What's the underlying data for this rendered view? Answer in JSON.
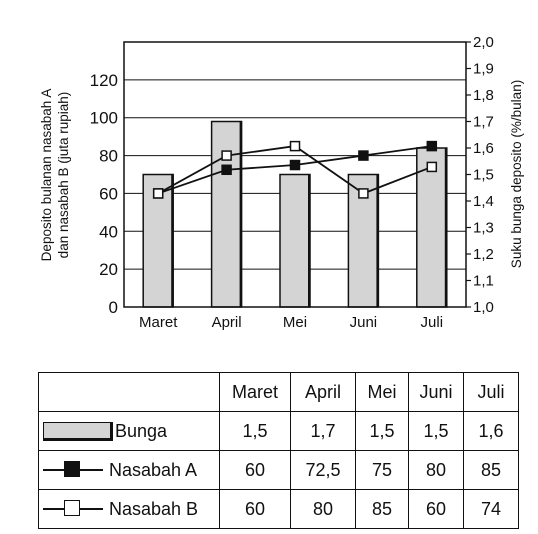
{
  "chart_data": {
    "type": "bar+line",
    "categories": [
      "Maret",
      "April",
      "Mei",
      "Juni",
      "Juli"
    ],
    "bar_series": {
      "name": "Bunga",
      "values": [
        1.5,
        1.7,
        1.5,
        1.5,
        1.6
      ],
      "axis": "right",
      "color": "#d4d4d4"
    },
    "line_series": [
      {
        "name": "Nasabah A",
        "values": [
          60,
          72.5,
          75,
          80,
          85
        ],
        "marker": "filled-square",
        "axis": "left"
      },
      {
        "name": "Nasabah B",
        "values": [
          60,
          80,
          85,
          60,
          74
        ],
        "marker": "open-square",
        "axis": "left"
      }
    ],
    "ylabel_left": "Deposito bulanan nasabah A dan nasabah B (juta rupiah)",
    "ylabel_left_lines": [
      "Deposito bulanan nasabah A",
      "dan nasabah B (juta rupiah)"
    ],
    "ylabel_right": "Suku bunga deposito (%/bulan)",
    "left_ticks": [
      "0",
      "20",
      "40",
      "60",
      "80",
      "100",
      "120"
    ],
    "right_ticks": [
      "1,0",
      "1,1",
      "1,2",
      "1,3",
      "1,4",
      "1,5",
      "1,6",
      "1,7",
      "1,8",
      "1,9",
      "2,0"
    ],
    "ylim_left": [
      0,
      140
    ],
    "ylim_right": [
      1.0,
      2.0
    ],
    "grid": true
  },
  "table": {
    "headers": [
      "Maret",
      "April",
      "Mei",
      "Juni",
      "Juli"
    ],
    "rows": [
      {
        "label": "Bunga",
        "values": [
          "1,5",
          "1,7",
          "1,5",
          "1,5",
          "1,6"
        ]
      },
      {
        "label": "Nasabah A",
        "values": [
          "60",
          "72,5",
          "75",
          "80",
          "85"
        ]
      },
      {
        "label": "Nasabah B",
        "values": [
          "60",
          "80",
          "85",
          "60",
          "74"
        ]
      }
    ]
  }
}
